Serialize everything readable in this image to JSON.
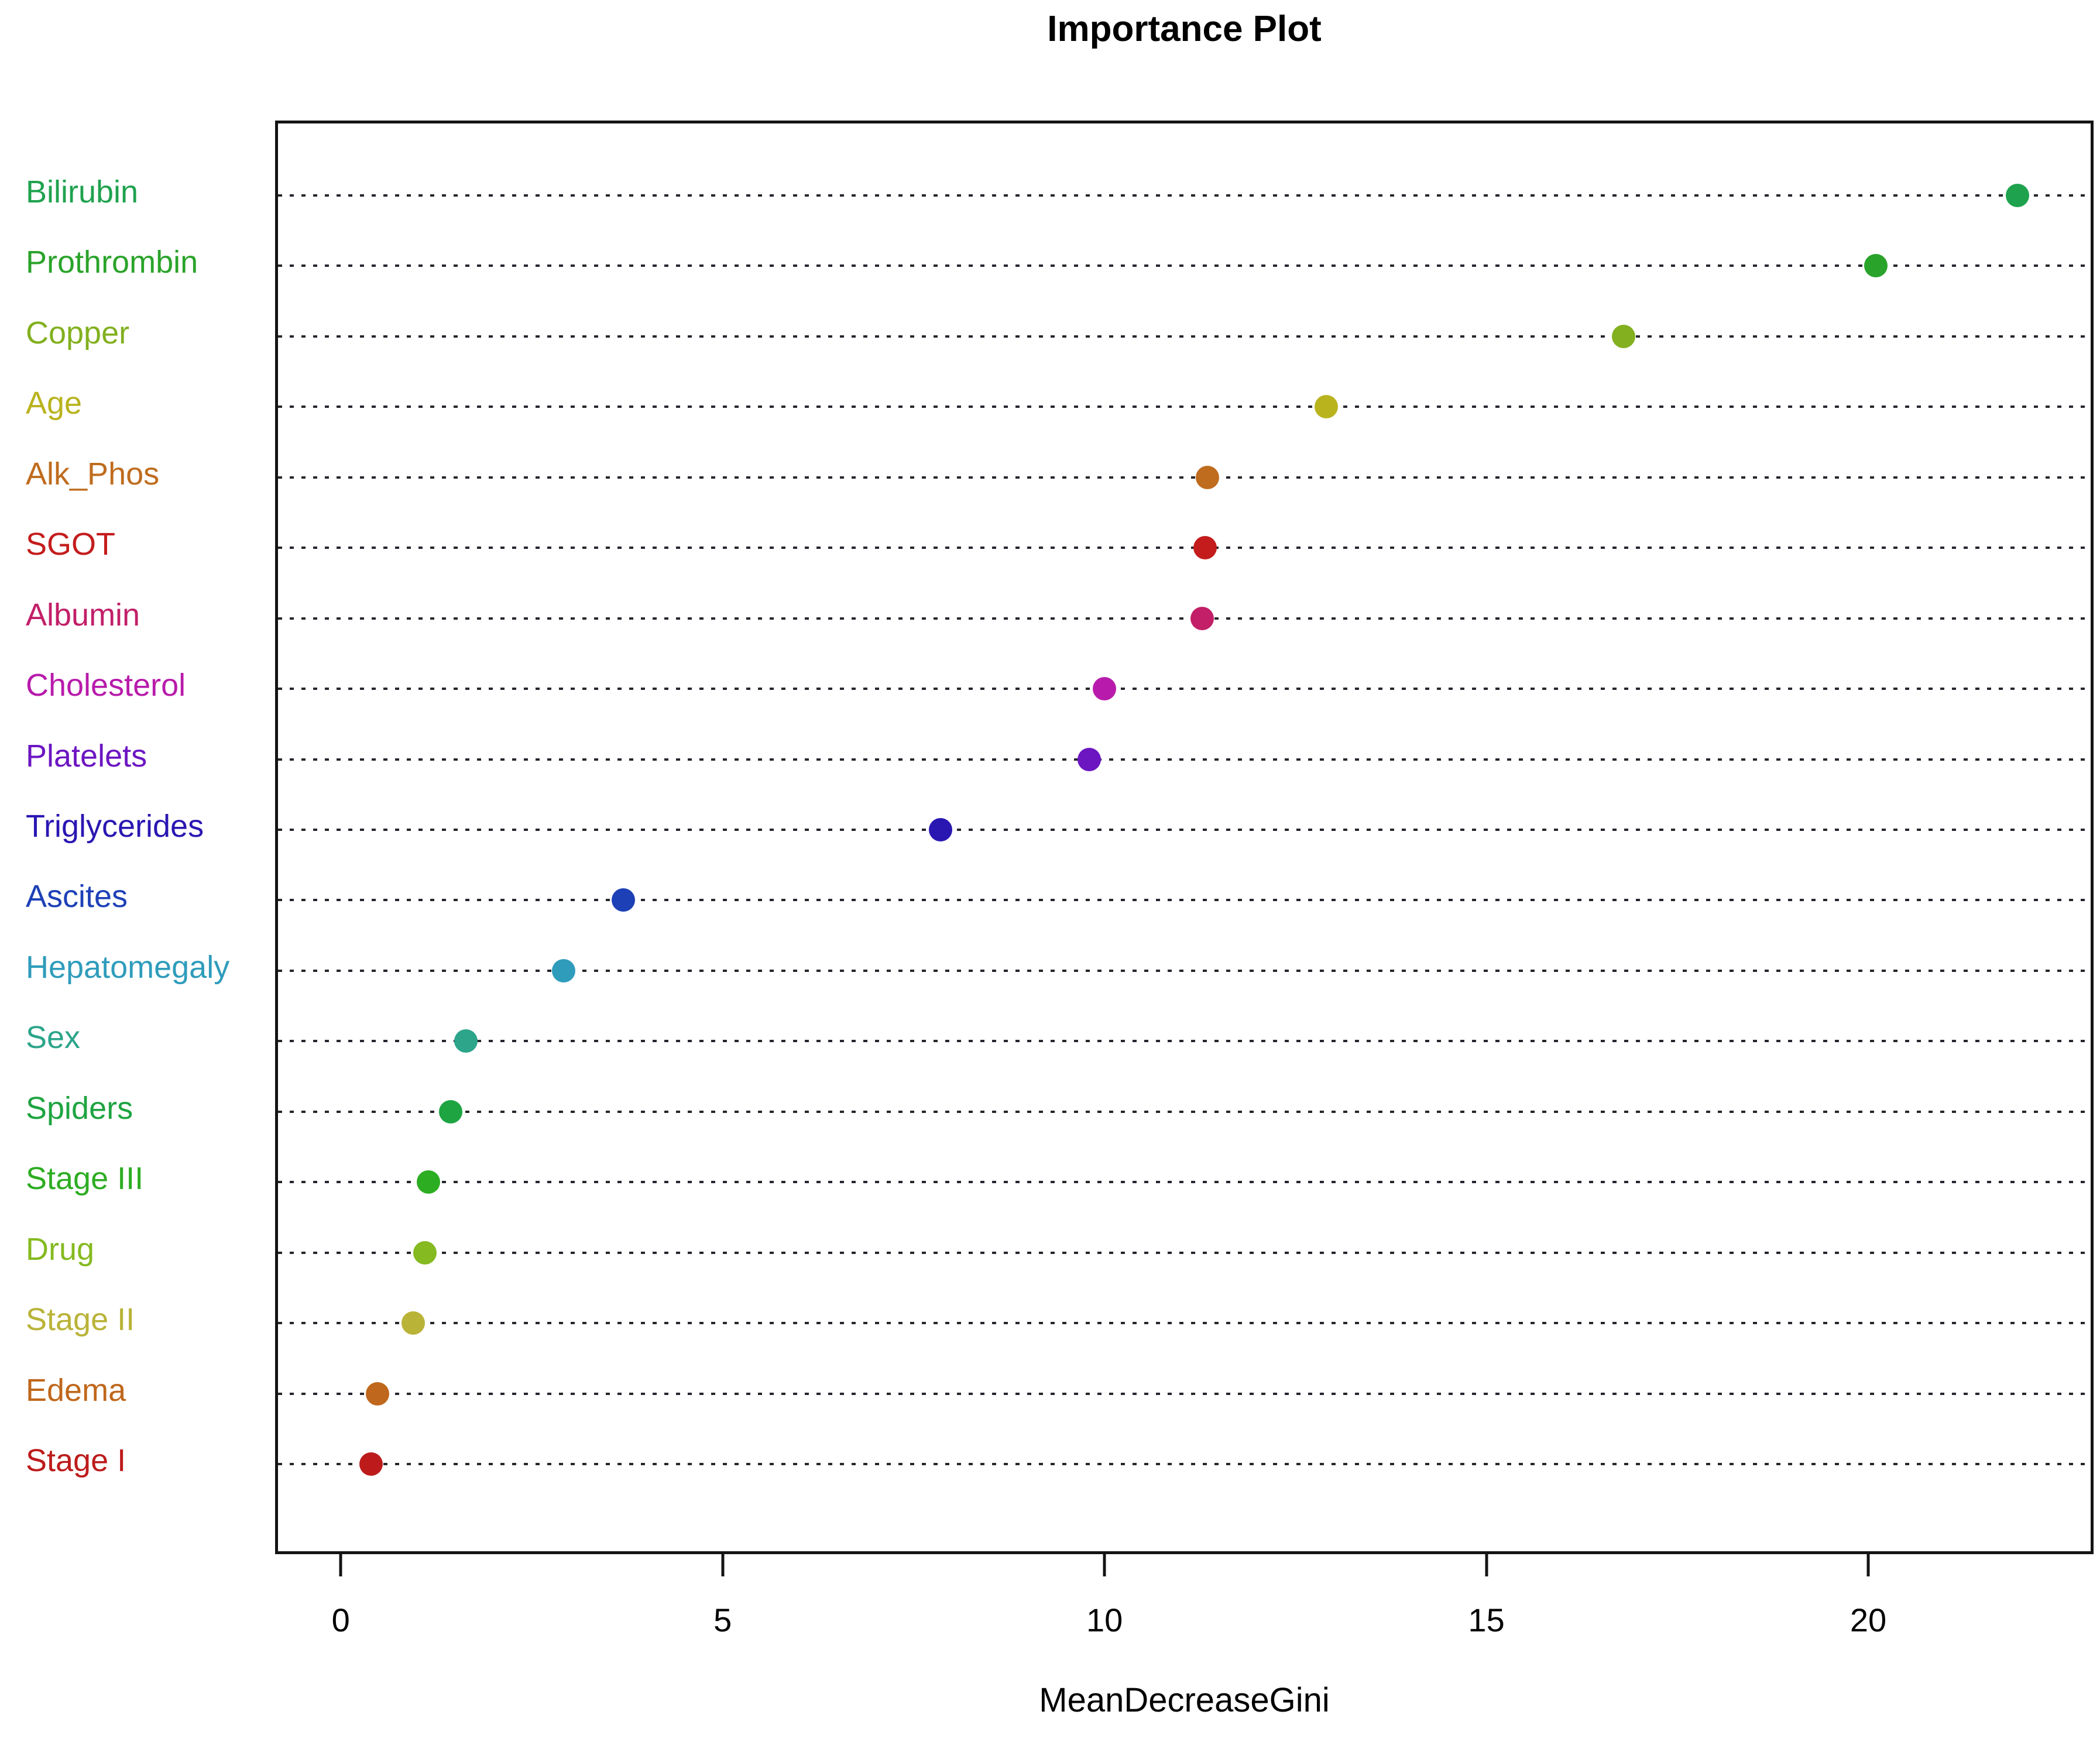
{
  "chart_data": {
    "type": "scatter",
    "title": "Importance Plot",
    "xlabel": "MeanDecreaseGini",
    "legend": "none",
    "point_style": "filled-circle",
    "grid": "horizontal-dotted",
    "x_axis": {
      "ticks": [
        0,
        5,
        10,
        15,
        20
      ],
      "min": -0.86,
      "max": 22.95
    },
    "categories": [
      "Bilirubin",
      "Prothrombin",
      "Copper",
      "Age",
      "Alk_Phos",
      "SGOT",
      "Albumin",
      "Cholesterol",
      "Platelets",
      "Triglycerides",
      "Ascites",
      "Hepatomegaly",
      "Sex",
      "Spiders",
      "Stage III",
      "Drug",
      "Stage II",
      "Edema",
      "Stage I"
    ],
    "values": [
      21.95,
      20.1,
      16.8,
      12.9,
      11.35,
      11.32,
      11.28,
      10.0,
      9.8,
      7.85,
      3.7,
      2.92,
      1.64,
      1.44,
      1.15,
      1.1,
      0.95,
      0.48,
      0.4
    ],
    "colors": [
      "#1fa24e",
      "#2aa32a",
      "#82b01f",
      "#b9b31e",
      "#bf6c1e",
      "#c41c1c",
      "#c21f68",
      "#b81bab",
      "#6c16c2",
      "#2a17b2",
      "#1d40b6",
      "#2f9cbb",
      "#2ca58a",
      "#1ea441",
      "#2dad22",
      "#85ba20",
      "#b9b338",
      "#bf671c",
      "#bd1b1b"
    ]
  }
}
